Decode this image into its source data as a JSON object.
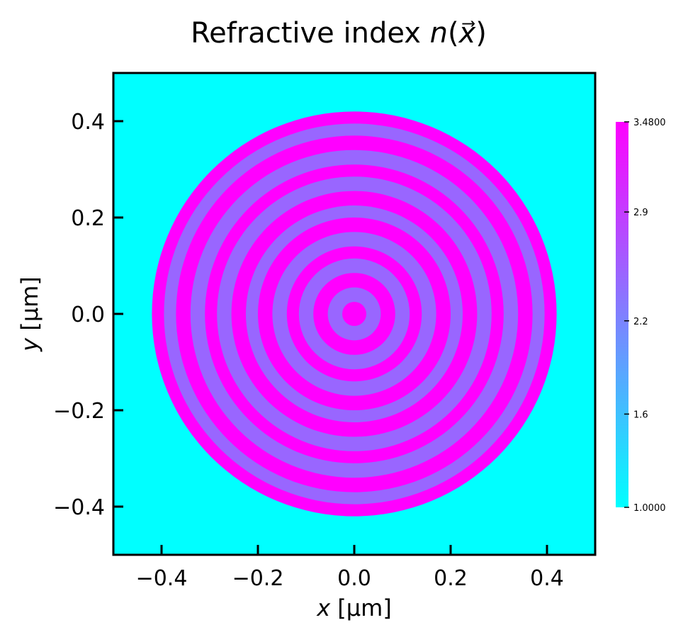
{
  "chart_data": {
    "type": "heatmap",
    "title": {
      "prefix": "Refractive index ",
      "func": "n",
      "open": "(",
      "arg": "x",
      "vec": "⃗",
      "close": ")"
    },
    "xlabel": {
      "var": "x",
      "unit": " [µm]"
    },
    "ylabel": {
      "var": "y",
      "unit": " [µm]"
    },
    "xlim": [
      -0.5,
      0.5
    ],
    "ylim": [
      -0.5,
      0.5
    ],
    "xticks": [
      -0.4,
      -0.2,
      0.0,
      0.2,
      0.4
    ],
    "xtick_labels": [
      "−0.4",
      "−0.2",
      "0.0",
      "0.2",
      "0.4"
    ],
    "yticks": [
      0.4,
      0.2,
      0.0,
      -0.2,
      -0.4
    ],
    "ytick_labels": [
      "0.4",
      "0.2",
      "0.0",
      "−0.2",
      "−0.4"
    ],
    "grid": false,
    "colormap": "cool",
    "colorbar": {
      "range": [
        1.0,
        3.48
      ],
      "ticks": [
        1.0,
        1.6,
        2.2,
        2.9,
        3.48
      ],
      "tick_labels": [
        "1.0000",
        "1.6",
        "2.2",
        "2.9",
        "3.4800"
      ],
      "gradient": [
        "#00ffff",
        "#ff00ff"
      ]
    },
    "background_value": 1.0,
    "background_color": "#00ffff",
    "rings": [
      {
        "r_outer": 0.42,
        "value": 3.48,
        "color": "#ff00ff"
      },
      {
        "r_outer": 0.395,
        "value": 2.4,
        "color": "#9966ff"
      },
      {
        "r_outer": 0.37,
        "value": 3.48,
        "color": "#ff00ff"
      },
      {
        "r_outer": 0.34,
        "value": 2.4,
        "color": "#9966ff"
      },
      {
        "r_outer": 0.31,
        "value": 3.48,
        "color": "#ff00ff"
      },
      {
        "r_outer": 0.285,
        "value": 2.4,
        "color": "#9966ff"
      },
      {
        "r_outer": 0.255,
        "value": 3.48,
        "color": "#ff00ff"
      },
      {
        "r_outer": 0.225,
        "value": 2.4,
        "color": "#9966ff"
      },
      {
        "r_outer": 0.2,
        "value": 3.48,
        "color": "#ff00ff"
      },
      {
        "r_outer": 0.17,
        "value": 2.4,
        "color": "#9966ff"
      },
      {
        "r_outer": 0.14,
        "value": 3.48,
        "color": "#ff00ff"
      },
      {
        "r_outer": 0.115,
        "value": 2.4,
        "color": "#9966ff"
      },
      {
        "r_outer": 0.085,
        "value": 3.48,
        "color": "#ff00ff"
      },
      {
        "r_outer": 0.055,
        "value": 2.4,
        "color": "#9966ff"
      },
      {
        "r_outer": 0.025,
        "value": 3.48,
        "color": "#ff00ff"
      }
    ]
  }
}
